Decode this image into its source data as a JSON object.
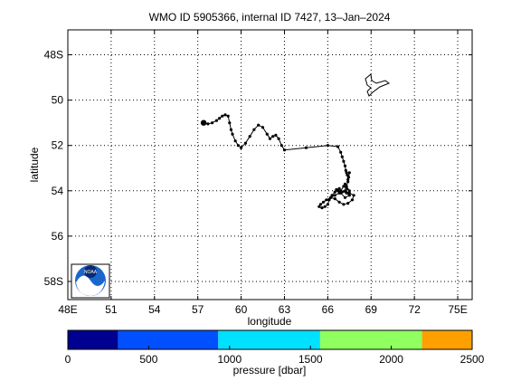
{
  "chart_data": {
    "type": "scatter",
    "title": "WMO ID 5905366, internal ID 7427, 13–Jan–2024",
    "xlabel": "longitude",
    "ylabel": "latitude",
    "xlim": [
      48,
      76
    ],
    "ylim": [
      -58.8,
      -46.9
    ],
    "grid": true,
    "x_ticks": [
      {
        "value": 48,
        "label": "48E"
      },
      {
        "value": 51,
        "label": "51"
      },
      {
        "value": 54,
        "label": "54"
      },
      {
        "value": 57,
        "label": "57"
      },
      {
        "value": 60,
        "label": "60"
      },
      {
        "value": 63,
        "label": "63"
      },
      {
        "value": 66,
        "label": "66"
      },
      {
        "value": 69,
        "label": "69"
      },
      {
        "value": 72,
        "label": "72"
      },
      {
        "value": 75,
        "label": "75E"
      }
    ],
    "y_ticks": [
      {
        "value": -48,
        "label": "48S"
      },
      {
        "value": -50,
        "label": "50"
      },
      {
        "value": -52,
        "label": "52"
      },
      {
        "value": -54,
        "label": "54"
      },
      {
        "value": -56,
        "label": "56"
      },
      {
        "value": -58,
        "label": "58S"
      }
    ],
    "series": [
      {
        "x": [
          57.4,
          57.7,
          58.0,
          58.3,
          58.5,
          58.7,
          58.9,
          59.1,
          59.2,
          59.3,
          59.4,
          59.6,
          59.8,
          60.0,
          60.3,
          60.6,
          60.9,
          61.2,
          61.5,
          61.8,
          62.0,
          62.2,
          62.4,
          62.6,
          62.8,
          63.0,
          64.5,
          66.0,
          66.7,
          66.9,
          67.0,
          67.1,
          67.2,
          67.25,
          67.3,
          67.35,
          67.4,
          67.45,
          67.5,
          67.4,
          67.3,
          67.5,
          67.3,
          67.1,
          67.2,
          66.9,
          67.3,
          67.5,
          67.2,
          66.9,
          66.7,
          66.8,
          66.6,
          66.5,
          66.3,
          66.1,
          66.0,
          65.8,
          65.6,
          65.4,
          65.5,
          65.7,
          65.9,
          66.2,
          66.5,
          66.8,
          67.1,
          67.4,
          67.7,
          67.8,
          67.5,
          67.2,
          67.0,
          66.8,
          66.5,
          66.2
        ],
        "y": [
          -51.0,
          -51.05,
          -51.0,
          -50.9,
          -50.8,
          -50.7,
          -50.65,
          -50.7,
          -51.0,
          -51.3,
          -51.5,
          -51.8,
          -52.0,
          -52.1,
          -51.9,
          -51.6,
          -51.3,
          -51.1,
          -51.2,
          -51.5,
          -51.7,
          -51.6,
          -51.55,
          -51.7,
          -52.0,
          -52.2,
          -52.1,
          -52.0,
          -52.05,
          -52.3,
          -52.5,
          -52.7,
          -52.9,
          -53.1,
          -53.2,
          -53.3,
          -53.5,
          -53.4,
          -53.2,
          -53.6,
          -53.8,
          -54.0,
          -53.9,
          -53.8,
          -53.7,
          -54.0,
          -54.1,
          -54.2,
          -54.3,
          -54.1,
          -54.0,
          -53.9,
          -53.95,
          -54.05,
          -54.2,
          -54.4,
          -54.6,
          -54.7,
          -54.75,
          -54.7,
          -54.6,
          -54.5,
          -54.4,
          -54.3,
          -54.35,
          -54.5,
          -54.6,
          -54.55,
          -54.4,
          -54.2,
          -54.1,
          -54.0,
          -54.05,
          -54.1,
          -54.2,
          -54.3
        ]
      }
    ],
    "pressure_colorbar": {
      "label": "pressure [dbar]",
      "min": 0,
      "max": 2500,
      "ticks": [
        0,
        500,
        1000,
        1500,
        2000,
        2500
      ],
      "tick_labels": [
        "0",
        "500",
        "1000",
        "1500",
        "2000",
        "2500"
      ],
      "bands": [
        {
          "from": 0,
          "to": 310,
          "color": "#000090"
        },
        {
          "from": 310,
          "to": 930,
          "color": "#0050ff"
        },
        {
          "from": 930,
          "to": 1560,
          "color": "#00e0ff"
        },
        {
          "from": 1560,
          "to": 2190,
          "color": "#90ff60"
        },
        {
          "from": 2190,
          "to": 2500,
          "color": "#ffa000"
        }
      ]
    },
    "logo_text": "NOAA"
  }
}
